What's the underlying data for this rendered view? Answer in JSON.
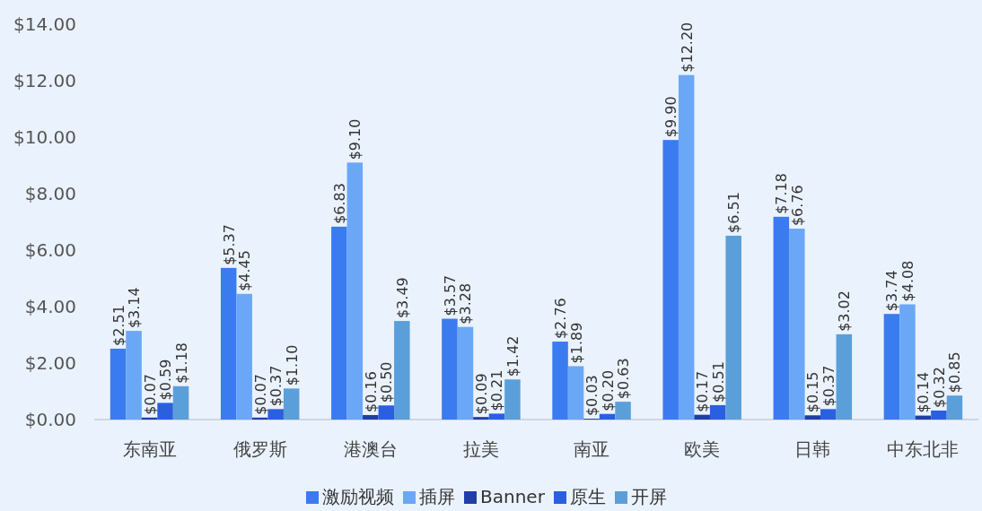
{
  "chart_data": {
    "type": "bar",
    "categories": [
      "东南亚",
      "俄罗斯",
      "港澳台",
      "拉美",
      "南亚",
      "欧美",
      "日韩",
      "中东北非"
    ],
    "ylim": [
      0,
      14
    ],
    "yticks": [
      {
        "value": 0,
        "label": "$0.00"
      },
      {
        "value": 2,
        "label": "$2.00"
      },
      {
        "value": 4,
        "label": "$4.00"
      },
      {
        "value": 6,
        "label": "$6.00"
      },
      {
        "value": 8,
        "label": "$8.00"
      },
      {
        "value": 10,
        "label": "$10.00"
      },
      {
        "value": 12,
        "label": "$12.00"
      },
      {
        "value": 14,
        "label": "$14.00"
      }
    ],
    "legend": "bottom",
    "series": [
      {
        "name": "激励视频",
        "color": "#3a7bf0",
        "values": [
          2.51,
          5.37,
          6.83,
          3.57,
          2.76,
          9.9,
          7.18,
          3.74
        ],
        "value_labels": [
          "$2.51",
          "$5.37",
          "$6.83",
          "$3.57",
          "$2.76",
          "$9.90",
          "$7.18",
          "$3.74"
        ]
      },
      {
        "name": "插屏",
        "color": "#6ba7f7",
        "values": [
          3.14,
          4.45,
          9.1,
          3.28,
          1.89,
          12.2,
          6.76,
          4.08
        ],
        "value_labels": [
          "$3.14",
          "$4.45",
          "$9.10",
          "$3.28",
          "$1.89",
          "$12.20",
          "$6.76",
          "$4.08"
        ]
      },
      {
        "name": "Banner",
        "color": "#1f3fa6",
        "values": [
          0.07,
          0.07,
          0.16,
          0.09,
          0.03,
          0.17,
          0.15,
          0.14
        ],
        "value_labels": [
          "$0.07",
          "$0.07",
          "$0.16",
          "$0.09",
          "$0.03",
          "$0.17",
          "$0.15",
          "$0.14"
        ]
      },
      {
        "name": "原生",
        "color": "#2a5fe0",
        "values": [
          0.59,
          0.37,
          0.5,
          0.21,
          0.2,
          0.51,
          0.37,
          0.32
        ],
        "value_labels": [
          "$0.59",
          "$0.37",
          "$0.50",
          "$0.21",
          "$0.20",
          "$0.51",
          "$0.37",
          "$0.32"
        ]
      },
      {
        "name": "开屏",
        "color": "#5a9fd9",
        "values": [
          1.18,
          1.1,
          3.49,
          1.42,
          0.63,
          6.51,
          3.02,
          0.85
        ],
        "value_labels": [
          "$1.18",
          "$1.10",
          "$3.49",
          "$1.42",
          "$0.63",
          "$6.51",
          "$3.02",
          "$0.85"
        ]
      }
    ]
  }
}
